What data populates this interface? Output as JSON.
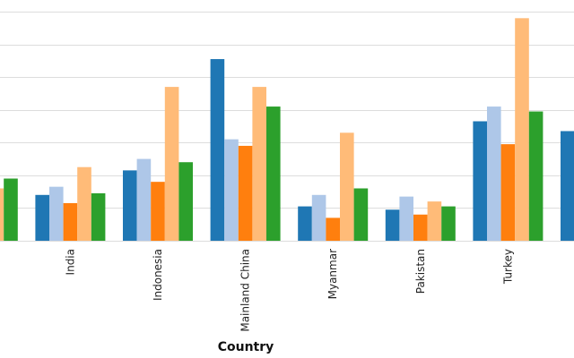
{
  "chart_data": {
    "type": "bar",
    "title": "",
    "xlabel": "Country",
    "ylabel": "",
    "ylim": [
      0,
      7
    ],
    "grid": true,
    "legend": "none",
    "categories": [
      "India",
      "Indonesia",
      "Mainland China",
      "Myanmar",
      "Pakistan",
      "Turkey"
    ],
    "partial_categories": {
      "left": [
        null,
        null,
        null,
        1.6,
        1.9
      ],
      "right": [
        3.35
      ]
    },
    "series": [
      {
        "color": "#1f77b4",
        "values": [
          1.4,
          2.15,
          5.55,
          1.05,
          0.95,
          3.65
        ]
      },
      {
        "color": "#aec7e8",
        "values": [
          1.65,
          2.5,
          3.1,
          1.4,
          1.35,
          4.1
        ]
      },
      {
        "color": "#ff7f0e",
        "values": [
          1.15,
          1.8,
          2.9,
          0.7,
          0.8,
          2.95
        ]
      },
      {
        "color": "#ffbb78",
        "values": [
          2.25,
          4.7,
          4.7,
          3.3,
          1.2,
          6.8
        ]
      },
      {
        "color": "#2ca02c",
        "values": [
          1.45,
          2.4,
          4.1,
          1.6,
          1.05,
          3.95
        ]
      }
    ]
  }
}
